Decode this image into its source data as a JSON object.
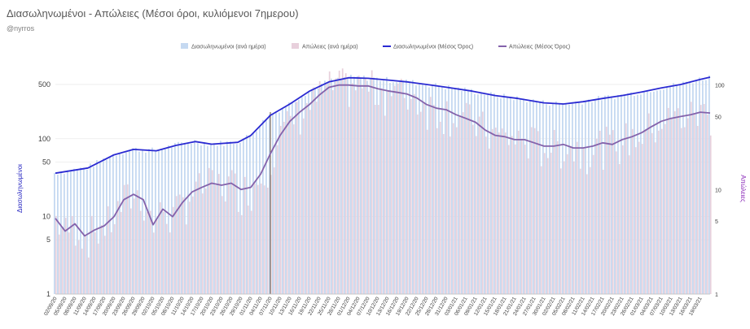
{
  "header": {
    "title": "Διασωληνωμένοι - Απώλειες (Μέσοι όροι, κυλιόμενοι 7ημερου)",
    "subtitle": "@nyrros"
  },
  "colors": {
    "intubated_bar": "#c5d9f1",
    "deaths_bar": "#e8d0dc",
    "intubated_avg": "#2a2ad2",
    "deaths_avg": "#8462ab",
    "marker": "#7b6b5e",
    "grid": "#e6e6e6"
  },
  "chart_data": {
    "type": "bar+line",
    "legend": [
      "Διασωληνωμένοι (ανά ημέρα)",
      "Απώλειες (ανά ημέρα)",
      "Διασωληνωμένοι (Μέσος Όρος)",
      "Απώλειες (Μέσος Όρος)"
    ],
    "legend_position": "top-center",
    "ylabel": "Διασωληνωμένοι",
    "y2label": "Απώλειες",
    "y_scale": "log",
    "y_ticks": [
      "1",
      "5",
      "10",
      "50",
      "100",
      "500"
    ],
    "y_range": [
      1,
      700
    ],
    "y2_scale": "log",
    "y2_ticks": [
      "1",
      "5",
      "10",
      "50",
      "100"
    ],
    "y2_range": [
      1,
      130
    ],
    "x_range": [
      "02/09/20",
      "22/03/21"
    ],
    "marker_date": "07/11/20",
    "x_ticks": [
      "02/09/20",
      "05/09/20",
      "08/09/20",
      "11/09/20",
      "14/09/20",
      "17/09/20",
      "20/09/20",
      "23/09/20",
      "26/09/20",
      "29/09/20",
      "02/10/20",
      "05/10/20",
      "08/10/20",
      "11/10/20",
      "14/10/20",
      "17/10/20",
      "20/10/20",
      "23/10/20",
      "26/10/20",
      "29/10/20",
      "01/11/20",
      "04/11/20",
      "07/11/20",
      "10/11/20",
      "13/11/20",
      "16/11/20",
      "19/11/20",
      "22/11/20",
      "25/11/20",
      "28/11/20",
      "01/12/20",
      "04/12/20",
      "07/12/20",
      "10/12/20",
      "13/12/20",
      "16/12/20",
      "19/12/20",
      "22/12/20",
      "25/12/20",
      "28/12/20",
      "31/12/20",
      "03/01/21",
      "06/01/21",
      "09/01/21",
      "12/01/21",
      "15/01/21",
      "18/01/21",
      "21/01/21",
      "24/01/21",
      "27/01/21",
      "30/01/21",
      "02/02/21",
      "05/02/21",
      "08/02/21",
      "11/02/21",
      "14/02/21",
      "17/02/21",
      "20/02/21",
      "23/02/21",
      "26/02/21",
      "01/03/21",
      "04/03/21",
      "07/03/21",
      "10/03/21",
      "13/03/21",
      "16/03/21",
      "19/03/21"
    ],
    "intubated_avg": [
      [
        "02/09/20",
        36
      ],
      [
        "12/09/20",
        42
      ],
      [
        "20/09/20",
        62
      ],
      [
        "26/09/20",
        73
      ],
      [
        "03/10/20",
        70
      ],
      [
        "09/10/20",
        82
      ],
      [
        "15/10/20",
        92
      ],
      [
        "20/10/20",
        85
      ],
      [
        "28/10/20",
        90
      ],
      [
        "01/11/20",
        110
      ],
      [
        "07/11/20",
        200
      ],
      [
        "13/11/20",
        280
      ],
      [
        "19/11/20",
        410
      ],
      [
        "25/11/20",
        540
      ],
      [
        "01/12/20",
        610
      ],
      [
        "07/12/20",
        600
      ],
      [
        "13/12/20",
        570
      ],
      [
        "19/12/20",
        540
      ],
      [
        "25/12/20",
        500
      ],
      [
        "31/12/20",
        460
      ],
      [
        "08/01/21",
        410
      ],
      [
        "15/01/21",
        360
      ],
      [
        "22/01/21",
        330
      ],
      [
        "30/01/21",
        290
      ],
      [
        "05/02/21",
        280
      ],
      [
        "11/02/21",
        300
      ],
      [
        "17/02/21",
        330
      ],
      [
        "23/02/21",
        360
      ],
      [
        "01/03/21",
        400
      ],
      [
        "07/03/21",
        450
      ],
      [
        "13/03/21",
        500
      ],
      [
        "19/03/21",
        580
      ],
      [
        "22/03/21",
        620
      ]
    ],
    "deaths_avg": [
      [
        "02/09/20",
        5.3
      ],
      [
        "05/09/20",
        4.0
      ],
      [
        "08/09/20",
        4.7
      ],
      [
        "11/09/20",
        3.6
      ],
      [
        "14/09/20",
        4.1
      ],
      [
        "17/09/20",
        4.5
      ],
      [
        "20/09/20",
        5.5
      ],
      [
        "23/09/20",
        8.0
      ],
      [
        "26/09/20",
        9.0
      ],
      [
        "29/09/20",
        8.0
      ],
      [
        "02/10/20",
        4.6
      ],
      [
        "05/10/20",
        6.5
      ],
      [
        "08/10/20",
        5.5
      ],
      [
        "11/10/20",
        7.5
      ],
      [
        "14/10/20",
        9.5
      ],
      [
        "17/10/20",
        10.5
      ],
      [
        "20/10/20",
        11.5
      ],
      [
        "23/10/20",
        11.0
      ],
      [
        "26/10/20",
        11.5
      ],
      [
        "29/10/20",
        10.0
      ],
      [
        "01/11/20",
        10.5
      ],
      [
        "04/11/20",
        14
      ],
      [
        "07/11/20",
        22
      ],
      [
        "10/11/20",
        33
      ],
      [
        "13/11/20",
        45
      ],
      [
        "16/11/20",
        55
      ],
      [
        "19/11/20",
        65
      ],
      [
        "22/11/20",
        80
      ],
      [
        "25/11/20",
        95
      ],
      [
        "28/11/20",
        100
      ],
      [
        "01/12/20",
        100
      ],
      [
        "04/12/20",
        98
      ],
      [
        "07/12/20",
        98
      ],
      [
        "10/12/20",
        92
      ],
      [
        "13/12/20",
        88
      ],
      [
        "16/12/20",
        85
      ],
      [
        "19/12/20",
        82
      ],
      [
        "22/12/20",
        75
      ],
      [
        "25/12/20",
        65
      ],
      [
        "28/12/20",
        60
      ],
      [
        "31/12/20",
        58
      ],
      [
        "03/01/21",
        52
      ],
      [
        "06/01/21",
        48
      ],
      [
        "09/01/21",
        44
      ],
      [
        "12/01/21",
        37
      ],
      [
        "15/01/21",
        33
      ],
      [
        "18/01/21",
        32
      ],
      [
        "21/01/21",
        30
      ],
      [
        "24/01/21",
        30
      ],
      [
        "27/01/21",
        28
      ],
      [
        "30/01/21",
        26
      ],
      [
        "02/02/21",
        26
      ],
      [
        "05/02/21",
        27
      ],
      [
        "08/02/21",
        25
      ],
      [
        "11/02/21",
        25
      ],
      [
        "14/02/21",
        26
      ],
      [
        "17/02/21",
        28
      ],
      [
        "20/02/21",
        27
      ],
      [
        "23/02/21",
        30
      ],
      [
        "26/02/21",
        32
      ],
      [
        "01/03/21",
        35
      ],
      [
        "04/03/21",
        40
      ],
      [
        "07/03/21",
        45
      ],
      [
        "10/03/21",
        48
      ],
      [
        "13/03/21",
        50
      ],
      [
        "16/03/21",
        52
      ],
      [
        "19/03/21",
        55
      ],
      [
        "22/03/21",
        54
      ]
    ]
  }
}
